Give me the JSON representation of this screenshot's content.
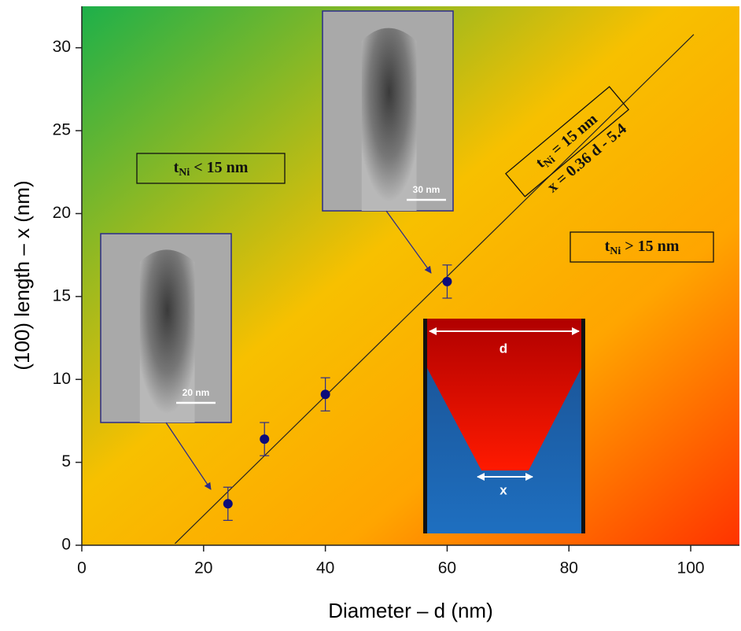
{
  "chart_data": {
    "type": "scatter",
    "xlabel": "Diameter – d (nm)",
    "ylabel": "(100) length – x (nm)",
    "xlim": [
      0,
      108
    ],
    "ylim": [
      0,
      32.5
    ],
    "xticks": [
      0,
      20,
      40,
      60,
      80,
      100
    ],
    "yticks": [
      0,
      5,
      10,
      15,
      20,
      25,
      30
    ],
    "x": [
      24,
      30,
      40,
      60
    ],
    "values": [
      2.5,
      6.4,
      9.1,
      15.9
    ],
    "errors": [
      1,
      1,
      1,
      1
    ],
    "color": "#0c0c7a",
    "fit": {
      "label": "x = 0.36 d - 5.4",
      "x": [
        15.3,
        100.5
      ],
      "y": [
        0.1,
        30.8
      ]
    },
    "annotations": [
      {
        "t": "t",
        "sub": "Ni",
        "rest": "< 15 nm"
      },
      {
        "t": "t",
        "sub": "Ni",
        "rest": "= 15 nm"
      },
      {
        "t": "t",
        "sub": "Ni",
        "rest": "> 15 nm"
      }
    ],
    "insets": [
      {
        "scale_label": "30 nm"
      },
      {
        "scale_label": "20 nm"
      }
    ],
    "diagram": {
      "top_label": "d",
      "bottom_label": "x"
    }
  }
}
